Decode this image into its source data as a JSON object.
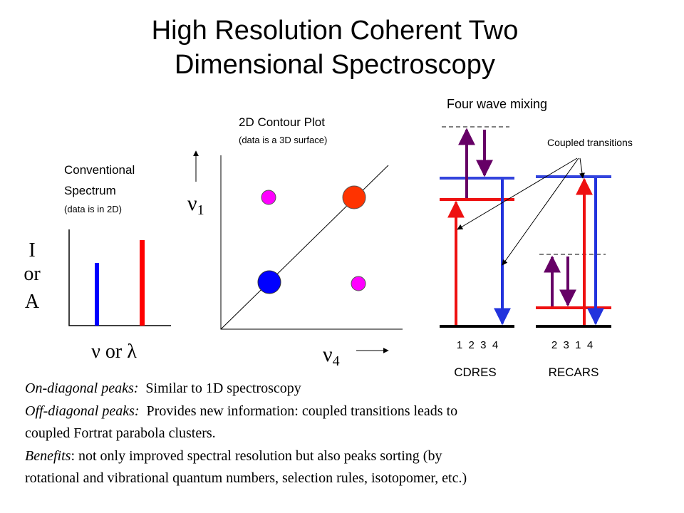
{
  "title": {
    "lines": [
      "High Resolution Coherent Two",
      "Dimensional Spectroscopy"
    ]
  },
  "conventional": {
    "lines": [
      "Conventional",
      "Spectrum"
    ],
    "note": "(data is in 2D)",
    "y_label": [
      "I",
      "or",
      "A"
    ],
    "x_label": "ν or λ"
  },
  "contour": {
    "title": "2D Contour Plot",
    "note": "(data is a 3D surface)",
    "y_axis": {
      "symbol": "ν",
      "subscript": "1"
    },
    "x_axis": {
      "symbol": "ν",
      "subscript": "4"
    }
  },
  "four_wave": {
    "title": "Four wave mixing",
    "annotation": "Coupled transitions",
    "cdres": {
      "order": "1  2  3  4",
      "name": "CDRES"
    },
    "recars": {
      "order": "2  3  1  4",
      "name": "RECARS"
    }
  },
  "notes": [
    {
      "label": "On-diagonal peaks:",
      "lines": [
        "Similar to 1D spectroscopy"
      ]
    },
    {
      "label": "Off-diagonal peaks:",
      "lines": [
        "Provides new information: coupled transitions leads to",
        "coupled Fortrat parabola clusters."
      ]
    },
    {
      "label": "Benefits",
      "lines": [
        ": not only improved spectral resolution but also peaks sorting (by",
        "rotational and vibrational quantum numbers, selection rules, isotopomer, etc.)"
      ]
    }
  ]
}
